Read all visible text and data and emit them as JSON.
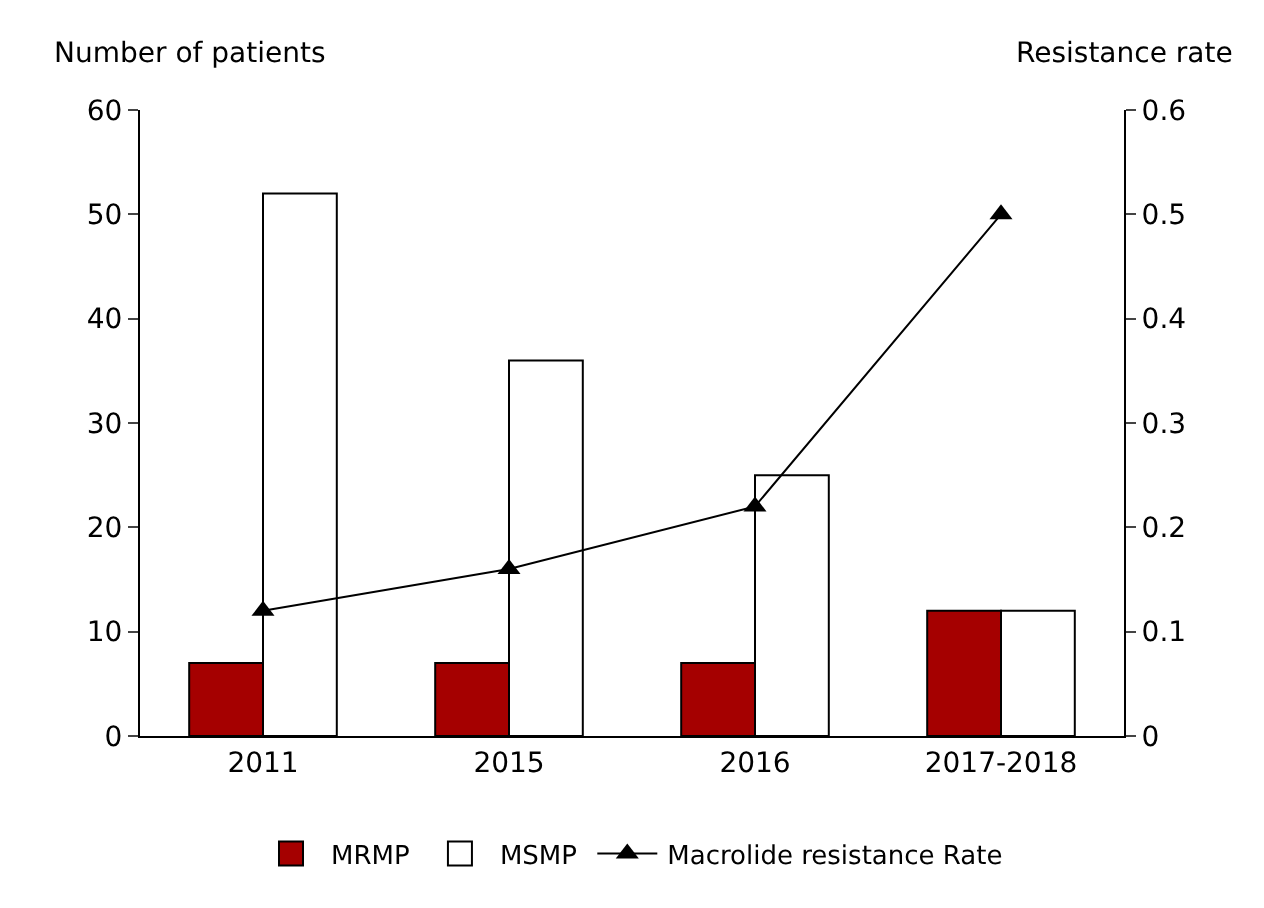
{
  "chart_data": {
    "type": "bar",
    "ylabel": "Number of patients",
    "y2label": "Resistance rate",
    "categories": [
      "2011",
      "2015",
      "2016",
      "2017-2018"
    ],
    "series": [
      {
        "name": "MRMP",
        "color": "#a50000",
        "values": [
          7,
          7,
          7,
          12
        ]
      },
      {
        "name": "MSMP",
        "color": "#ffffff",
        "values": [
          52,
          36,
          25,
          12
        ]
      },
      {
        "name": "Macrolide resistance Rate",
        "type": "line",
        "axis": "y2",
        "color": "#000000",
        "marker": "triangle",
        "values": [
          0.12,
          0.16,
          0.22,
          0.5
        ]
      }
    ],
    "ylim": [
      0,
      60
    ],
    "yticks": [
      0,
      10,
      20,
      30,
      40,
      50,
      60
    ],
    "y2lim": [
      0,
      0.6
    ],
    "y2ticks": [
      0,
      0.1,
      0.2,
      0.3,
      0.4,
      0.5,
      0.6
    ],
    "legend": "bottom"
  }
}
